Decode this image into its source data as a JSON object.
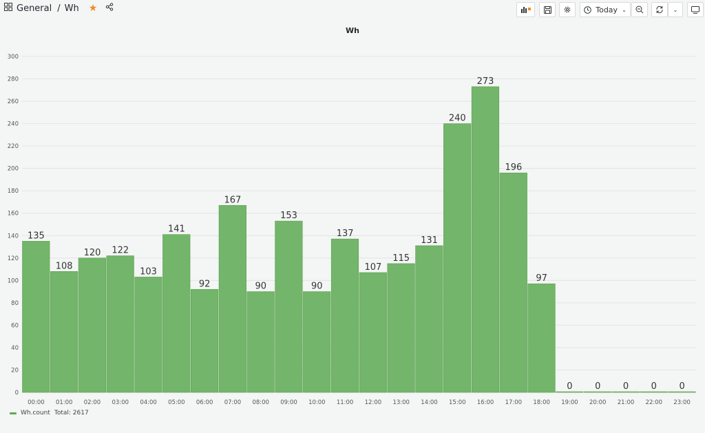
{
  "header": {
    "folder": "General",
    "dashboard": "Wh",
    "time_range": "Today",
    "icons": [
      "grid-icon",
      "star-icon",
      "share-icon",
      "add-panel-icon",
      "save-icon",
      "gear-icon",
      "clock-icon",
      "zoom-out-icon",
      "refresh-icon",
      "chevron-down-icon",
      "tv-icon"
    ]
  },
  "chart_data": {
    "type": "bar",
    "title": "Wh",
    "categories": [
      "00:00",
      "01:00",
      "02:00",
      "03:00",
      "04:00",
      "05:00",
      "06:00",
      "07:00",
      "08:00",
      "09:00",
      "10:00",
      "11:00",
      "12:00",
      "13:00",
      "14:00",
      "15:00",
      "16:00",
      "17:00",
      "18:00",
      "19:00",
      "20:00",
      "21:00",
      "22:00",
      "23:00"
    ],
    "series": [
      {
        "name": "Wh.count",
        "values": [
          135,
          108,
          120,
          122,
          103,
          141,
          92,
          167,
          90,
          153,
          90,
          137,
          107,
          115,
          131,
          240,
          273,
          196,
          97,
          0,
          0,
          0,
          0,
          0
        ]
      }
    ],
    "ylim": [
      0,
      300
    ],
    "yticks": [
      0,
      20,
      40,
      60,
      80,
      100,
      120,
      140,
      160,
      180,
      200,
      220,
      240,
      260,
      280,
      300
    ],
    "grid": true,
    "bar_color": "#73b56a",
    "legend": {
      "position": "bottom-left",
      "label": "Wh.count",
      "summary": "Total: 2617"
    }
  }
}
